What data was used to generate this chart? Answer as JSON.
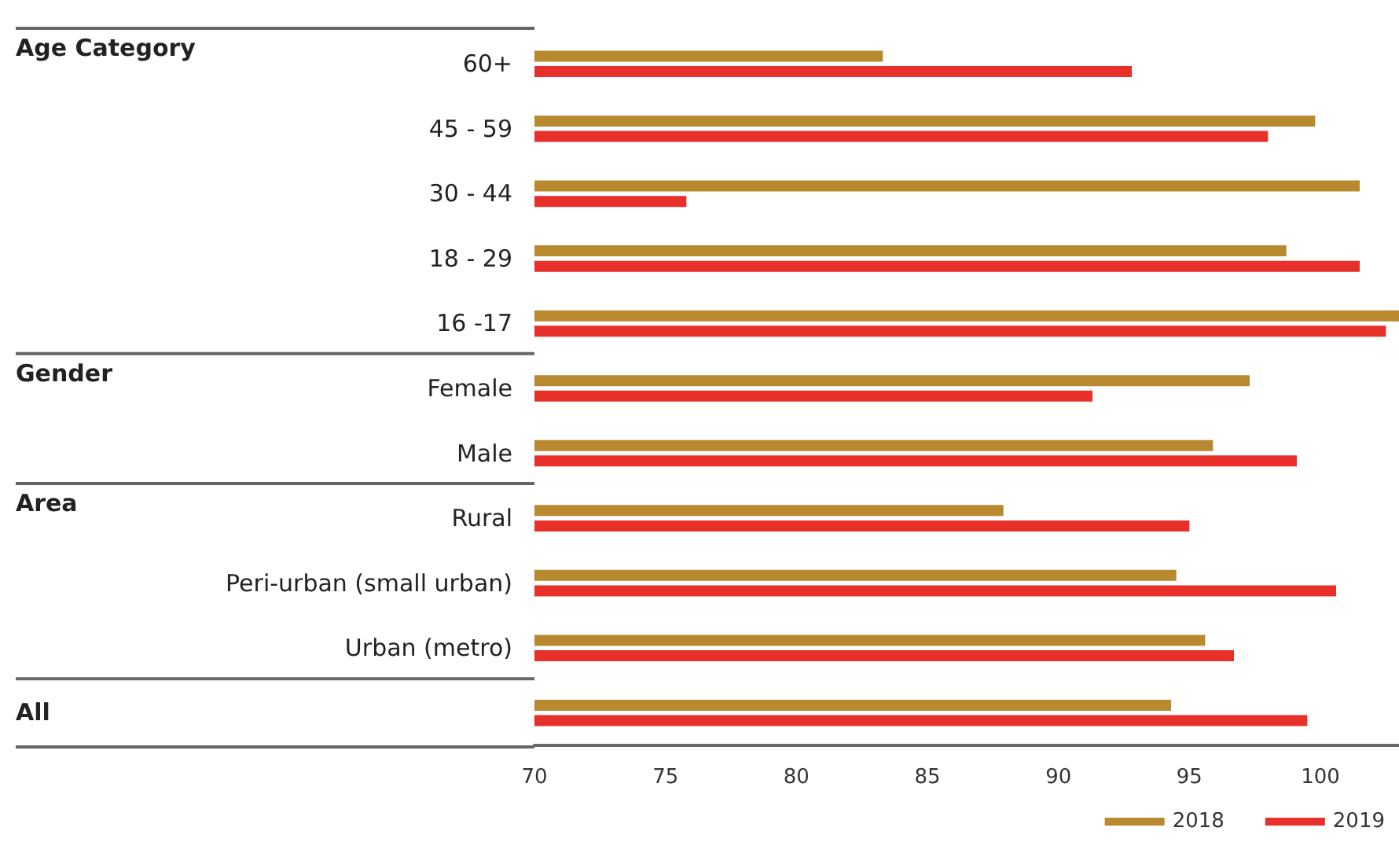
{
  "chart_data": {
    "type": "bar",
    "orientation": "horizontal",
    "categories": [
      "60+",
      "45 - 59",
      "30 - 44",
      "18 - 29",
      "16 -17",
      "Female",
      "Male",
      "Rural",
      "Peri-urban (small urban)",
      "Urban (metro)",
      null
    ],
    "series": [
      {
        "name": "2018",
        "color": "#b8892f",
        "values": [
          83.3,
          99.8,
          101.5,
          98.7,
          103,
          97.3,
          95.9,
          87.9,
          94.5,
          95.6,
          94.3
        ]
      },
      {
        "name": "2019",
        "color": "#e8302a",
        "values": [
          92.8,
          98.0,
          75.8,
          101.5,
          102.5,
          91.3,
          99.1,
          95.0,
          100.6,
          96.7,
          99.5
        ]
      }
    ],
    "xlim": [
      70,
      103
    ],
    "xticks": [
      70,
      75,
      80,
      85,
      90,
      95,
      100
    ],
    "annotations": [
      "Age Category",
      "Gender",
      "Area",
      "All"
    ],
    "grid": false,
    "legend": "bottom right"
  }
}
